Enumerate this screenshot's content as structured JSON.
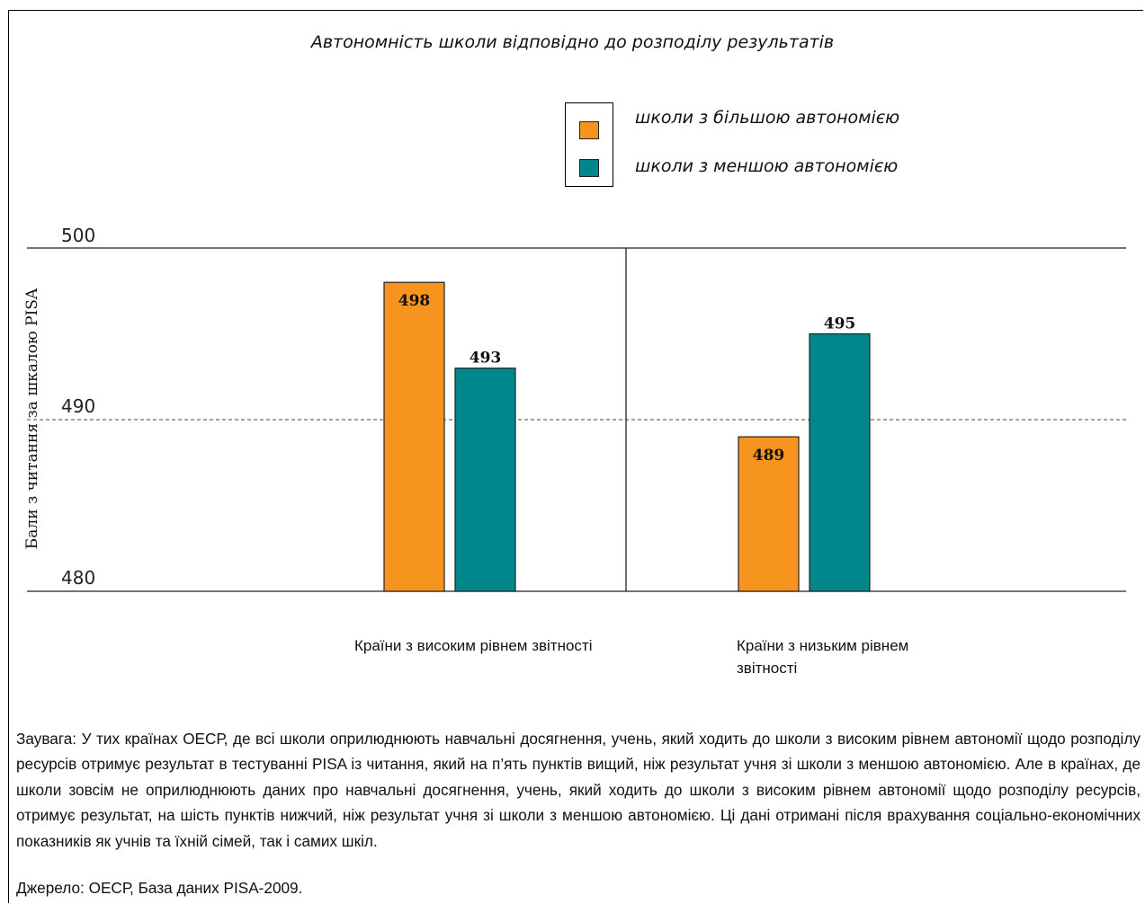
{
  "chart_data": {
    "type": "bar",
    "title": "Автономність школи відповідно до розподілу результатів",
    "ylabel": "Бали з читання за шкалою PISA",
    "xlabel": "",
    "ylim": [
      480,
      500
    ],
    "yticks": [
      "500",
      "490",
      "480"
    ],
    "categories": [
      "Країни з високим рівнем звітності",
      "Країни з низьким рівнем звітності"
    ],
    "series": [
      {
        "name": "школи з більшою автономією",
        "color": "#F7941D",
        "values": [
          498,
          489
        ]
      },
      {
        "name": "школи з меншою автономією",
        "color": "#00868B",
        "values": [
          493,
          495
        ]
      }
    ],
    "value_labels": [
      [
        "498",
        "489"
      ],
      [
        "493",
        "495"
      ]
    ],
    "legend_position": "top-right",
    "grid": "dashed line at 490"
  },
  "note": "Заувага: У тих країнах ОЕСР, де всі школи оприлюднюють навчальні досягнення, учень, який ходить до школи з високим рівнем автономії щодо розподілу ресурсів отримує результат в тестуванні PISA із читання, який на п’ять пунктів вищий, ніж результат учня зі школи з меншою автономією. Але в країнах, де школи зовсім не оприлюднюють даних про навчальні досягнення, учень, який ходить до школи з високим рівнем автономії щодо розподілу ресурсів, отримує результат, на шість пунктів нижчий, ніж результат учня зі школи з меншою автономією. Ці дані отримані після врахування соціально-економічних показників як учнів та їхній сімей, так і самих шкіл.",
  "source": "Джерело: ОЕСР, База даних PISA-2009."
}
